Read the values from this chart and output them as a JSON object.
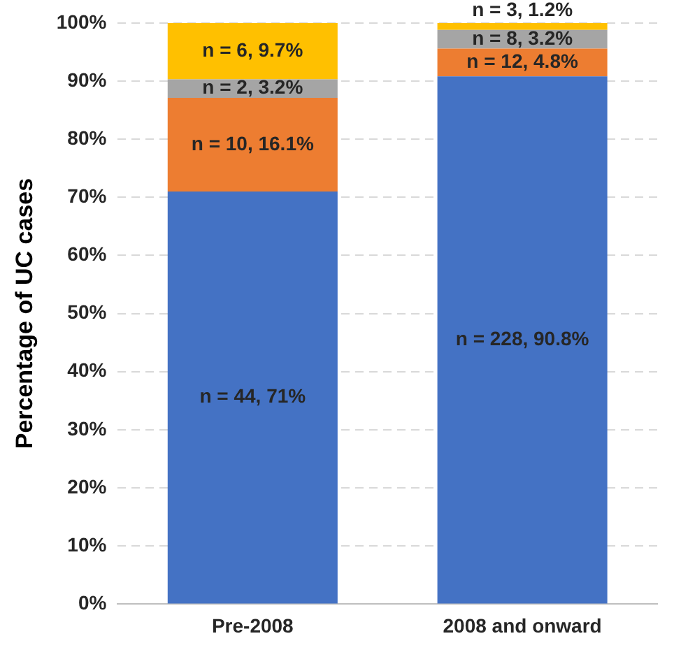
{
  "chart_data": {
    "type": "bar",
    "stacked": true,
    "ylabel": "Percentage of UC cases",
    "categories": [
      "Pre-2008",
      "2008 and onward"
    ],
    "series": [
      {
        "color": "#4472c4",
        "values": [
          71,
          90.8
        ],
        "value_labels": [
          "n = 44, 71%",
          "n = 228, 90.8%"
        ]
      },
      {
        "color": "#ed7d31",
        "values": [
          16.1,
          4.8
        ],
        "value_labels": [
          "n = 10, 16.1%",
          "n = 12, 4.8%"
        ]
      },
      {
        "color": "#a5a5a5",
        "values": [
          3.2,
          3.2
        ],
        "value_labels": [
          "n = 2, 3.2%",
          "n = 8, 3.2%"
        ]
      },
      {
        "color": "#ffc000",
        "values": [
          9.7,
          1.2
        ],
        "value_labels": [
          "n = 6, 9.7%",
          "n = 3, 1.2%"
        ]
      }
    ],
    "ylim": [
      0,
      100
    ],
    "yticks": [
      {
        "value": 0,
        "label": "0%"
      },
      {
        "value": 10,
        "label": "10%"
      },
      {
        "value": 20,
        "label": "20%"
      },
      {
        "value": 30,
        "label": "30%"
      },
      {
        "value": 40,
        "label": "40%"
      },
      {
        "value": 50,
        "label": "50%"
      },
      {
        "value": 60,
        "label": "60%"
      },
      {
        "value": 70,
        "label": "70%"
      },
      {
        "value": 80,
        "label": "80%"
      },
      {
        "value": 90,
        "label": "90%"
      },
      {
        "value": 100,
        "label": "100%"
      }
    ],
    "grid": "y",
    "legend": false
  }
}
